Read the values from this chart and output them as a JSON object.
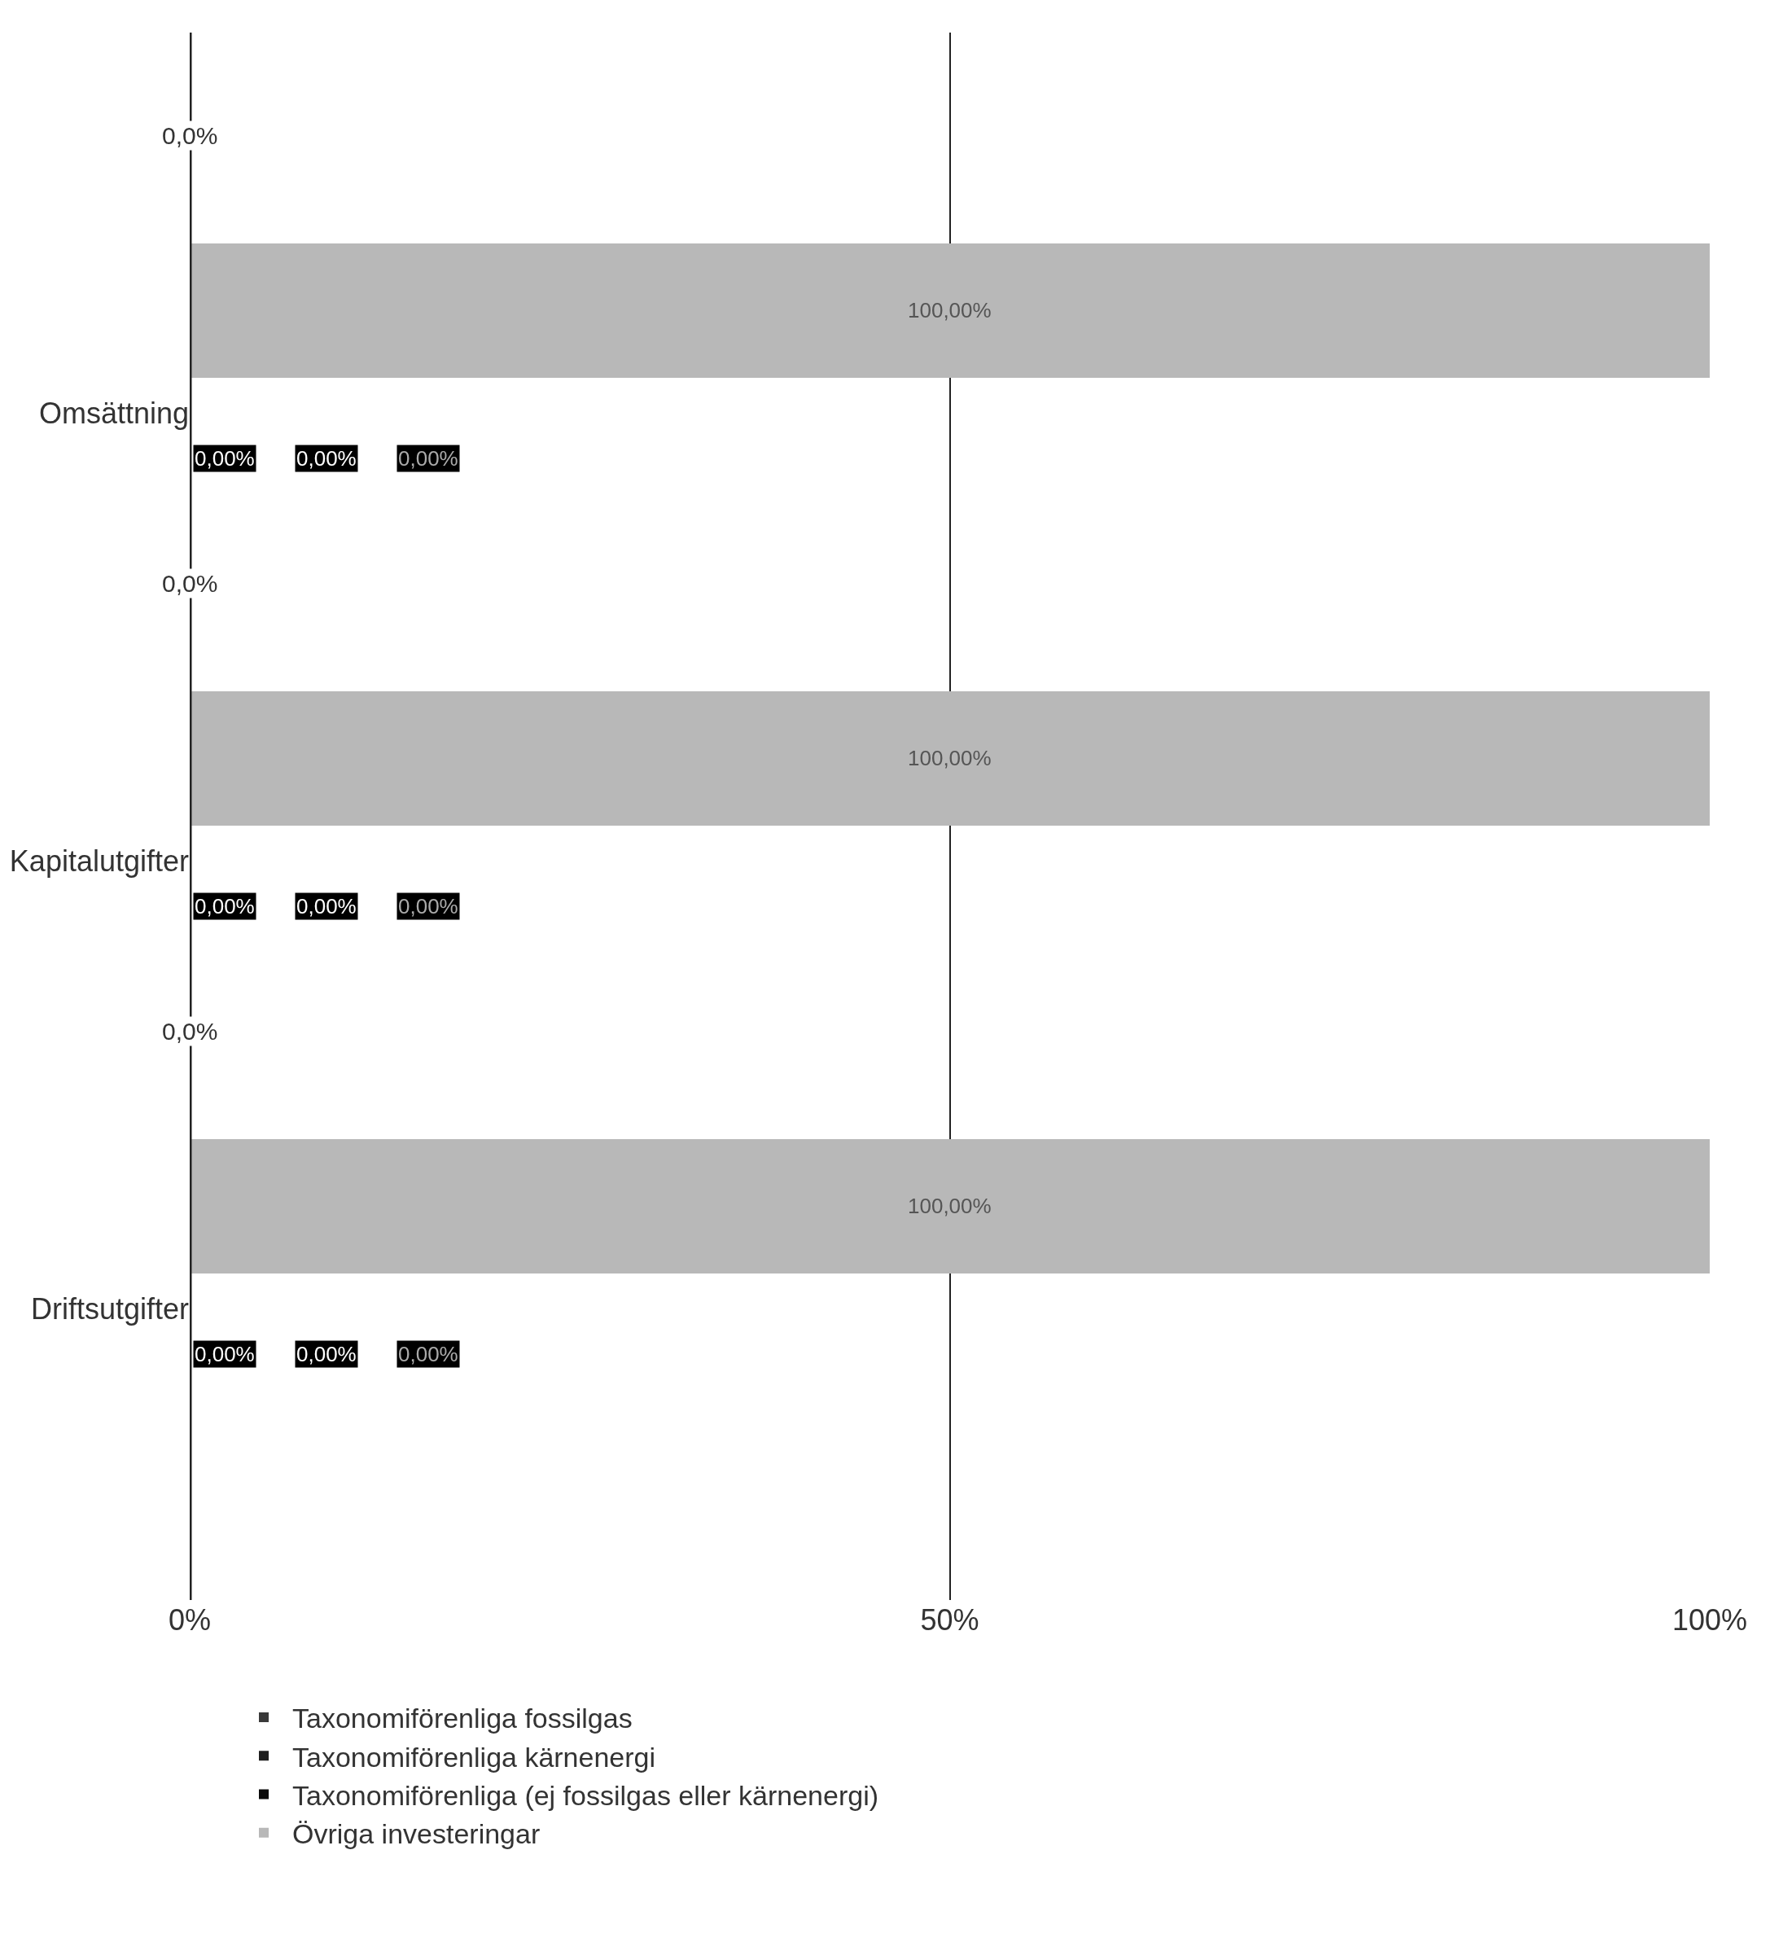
{
  "chart_data": {
    "type": "bar",
    "orientation": "horizontal",
    "stacked": true,
    "categories": [
      "Omsättning",
      "Kapitalutgifter",
      "Driftsutgifter"
    ],
    "series": [
      {
        "name": "Taxonomiförenliga fossilgas",
        "color": "#3a3a3a",
        "values": [
          0,
          0,
          0
        ]
      },
      {
        "name": "Taxonomiförenliga kärnenergi",
        "color": "#1e1e1e",
        "values": [
          0,
          0,
          0
        ]
      },
      {
        "name": "Taxonomiförenliga (ej fossilgas eller kärnenergi)",
        "color": "#0a0a0a",
        "values": [
          0,
          0,
          0
        ]
      },
      {
        "name": "Övriga investeringar",
        "color": "#b8b8b8",
        "values": [
          100,
          100,
          100
        ],
        "value_labels": [
          "100,00%",
          "100,00%",
          "100,00%"
        ]
      }
    ],
    "xlim": [
      0,
      100
    ],
    "xticks": [
      {
        "value": 0,
        "label": "0%"
      },
      {
        "value": 50,
        "label": "50%"
      },
      {
        "value": 100,
        "label": "100%"
      }
    ],
    "grid": "x",
    "legend": "bottom",
    "annotations": [
      "0,0%",
      "0,00%",
      "0,00%",
      "0,00%",
      "0,0%",
      "0,00%",
      "0,00%",
      "0,00%",
      "0,0%",
      "0,00%",
      "0,00%",
      "0,00%"
    ]
  }
}
